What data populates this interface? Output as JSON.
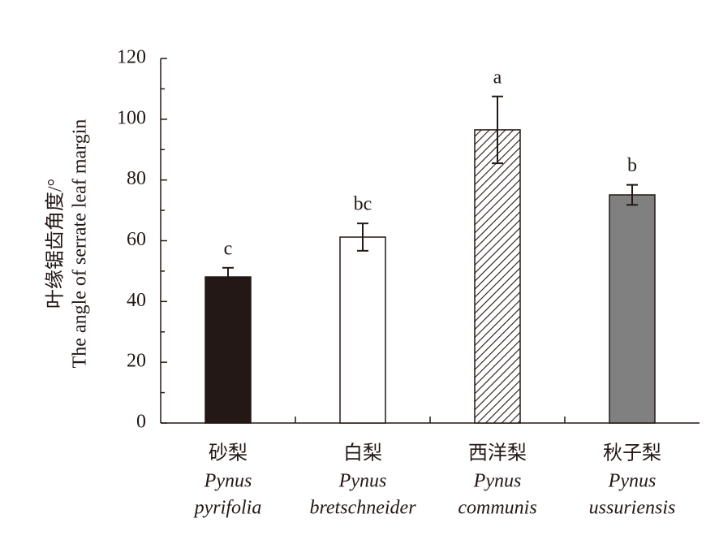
{
  "chart_data": {
    "type": "bar",
    "y_label": [
      "叶缘锯齿角度/°",
      "The angle of serrate leaf margin"
    ],
    "categories": [
      "砂梨",
      "白梨",
      "西洋梨",
      "秋子梨"
    ],
    "category_latin": [
      [
        "Pynus",
        "pyrifolia"
      ],
      [
        "Pynus",
        "bretschneider"
      ],
      [
        "Pynus",
        "communis"
      ],
      [
        "Pynus",
        "ussuriensis"
      ]
    ],
    "values": [
      48.1,
      61.2,
      96.5,
      75.1
    ],
    "errors": [
      3,
      4.5,
      11,
      3.3
    ],
    "annotations": [
      "c",
      "bc",
      "a",
      "b"
    ],
    "colors": [
      "#231815",
      "#ffffff",
      "hatch",
      "#808080"
    ],
    "ylim": [
      0,
      120
    ],
    "yticks": [
      0,
      20,
      40,
      60,
      80,
      100,
      120
    ],
    "minor_yticks": [
      10,
      30,
      50,
      70,
      90,
      110
    ]
  }
}
